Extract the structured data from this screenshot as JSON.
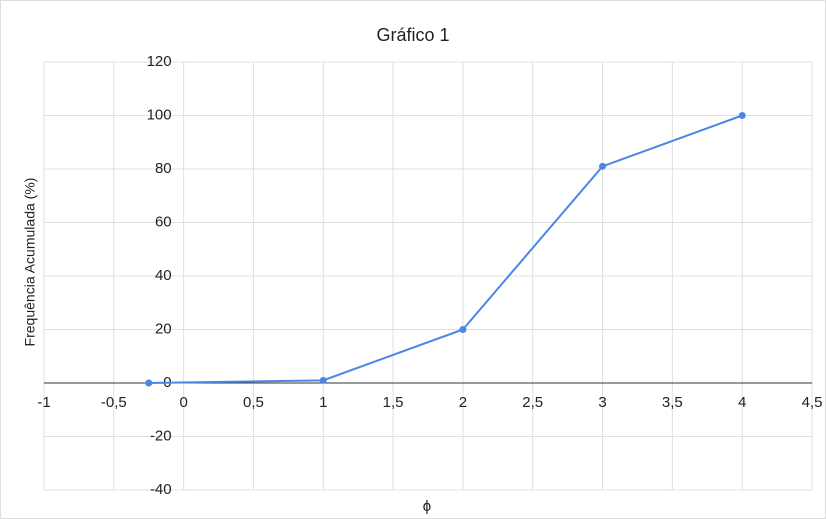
{
  "chart_data": {
    "type": "line",
    "title": "Gráfico 1",
    "x_label": "ϕ",
    "y_label": "Frequência Acumulada (%)",
    "x": [
      -0.25,
      1,
      2,
      3,
      4
    ],
    "series": [
      {
        "color": "#4a86e8",
        "values": [
          0,
          1,
          20,
          81,
          100
        ]
      }
    ],
    "xlim": [
      -1,
      4.5
    ],
    "xticks": [
      -1,
      {
        "value": -0.5,
        "label": "-0,5"
      },
      0,
      {
        "value": 0.5,
        "label": "0,5"
      },
      1,
      {
        "value": 1.5,
        "label": "1,5"
      },
      2,
      {
        "value": 2.5,
        "label": "2,5"
      },
      3,
      {
        "value": 3.5,
        "label": "3,5"
      },
      4,
      {
        "value": 4.5,
        "label": "4,5"
      }
    ],
    "ylim": [
      -40,
      120
    ],
    "yticks": [
      -40,
      -20,
      0,
      20,
      40,
      60,
      80,
      100,
      120
    ],
    "grid": true
  }
}
